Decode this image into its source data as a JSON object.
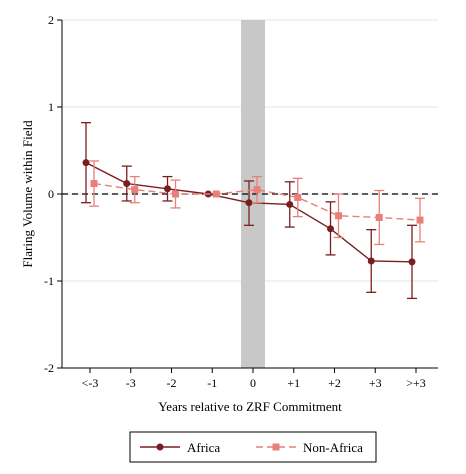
{
  "chart_data": {
    "type": "line",
    "title": "",
    "xlabel": "Years relative to ZRF Commitment",
    "ylabel": "Flaring Volume within Field",
    "categories": [
      "<-3",
      "-3",
      "-2",
      "-1",
      "0",
      "+1",
      "+2",
      "+3",
      ">+3"
    ],
    "ylim": [
      -2,
      2
    ],
    "yticks": [
      "-2",
      "-1",
      "0",
      "1",
      "2"
    ],
    "reference_line_y": 0,
    "shaded_category": "0",
    "grid": "horizontal",
    "legend_position": "bottom",
    "series": [
      {
        "name": "Africa",
        "style": "solid",
        "marker": "circle",
        "color": "#7a1f1f",
        "values": [
          0.36,
          0.12,
          0.06,
          0.0,
          -0.1,
          -0.12,
          -0.4,
          -0.77,
          -0.78
        ],
        "ci_low": [
          -0.1,
          -0.08,
          -0.08,
          0.0,
          -0.36,
          -0.38,
          -0.7,
          -1.13,
          -1.2
        ],
        "ci_high": [
          0.82,
          0.32,
          0.2,
          0.0,
          0.15,
          0.14,
          -0.09,
          -0.41,
          -0.36
        ]
      },
      {
        "name": "Non-Africa",
        "style": "dashed",
        "marker": "square",
        "color": "#e8807a",
        "values": [
          0.12,
          0.05,
          0.0,
          0.0,
          0.05,
          -0.04,
          -0.25,
          -0.27,
          -0.3
        ],
        "ci_low": [
          -0.14,
          -0.1,
          -0.16,
          0.0,
          -0.1,
          -0.26,
          -0.5,
          -0.58,
          -0.55
        ],
        "ci_high": [
          0.38,
          0.2,
          0.16,
          0.0,
          0.2,
          0.18,
          0.0,
          0.04,
          -0.05
        ]
      }
    ]
  }
}
